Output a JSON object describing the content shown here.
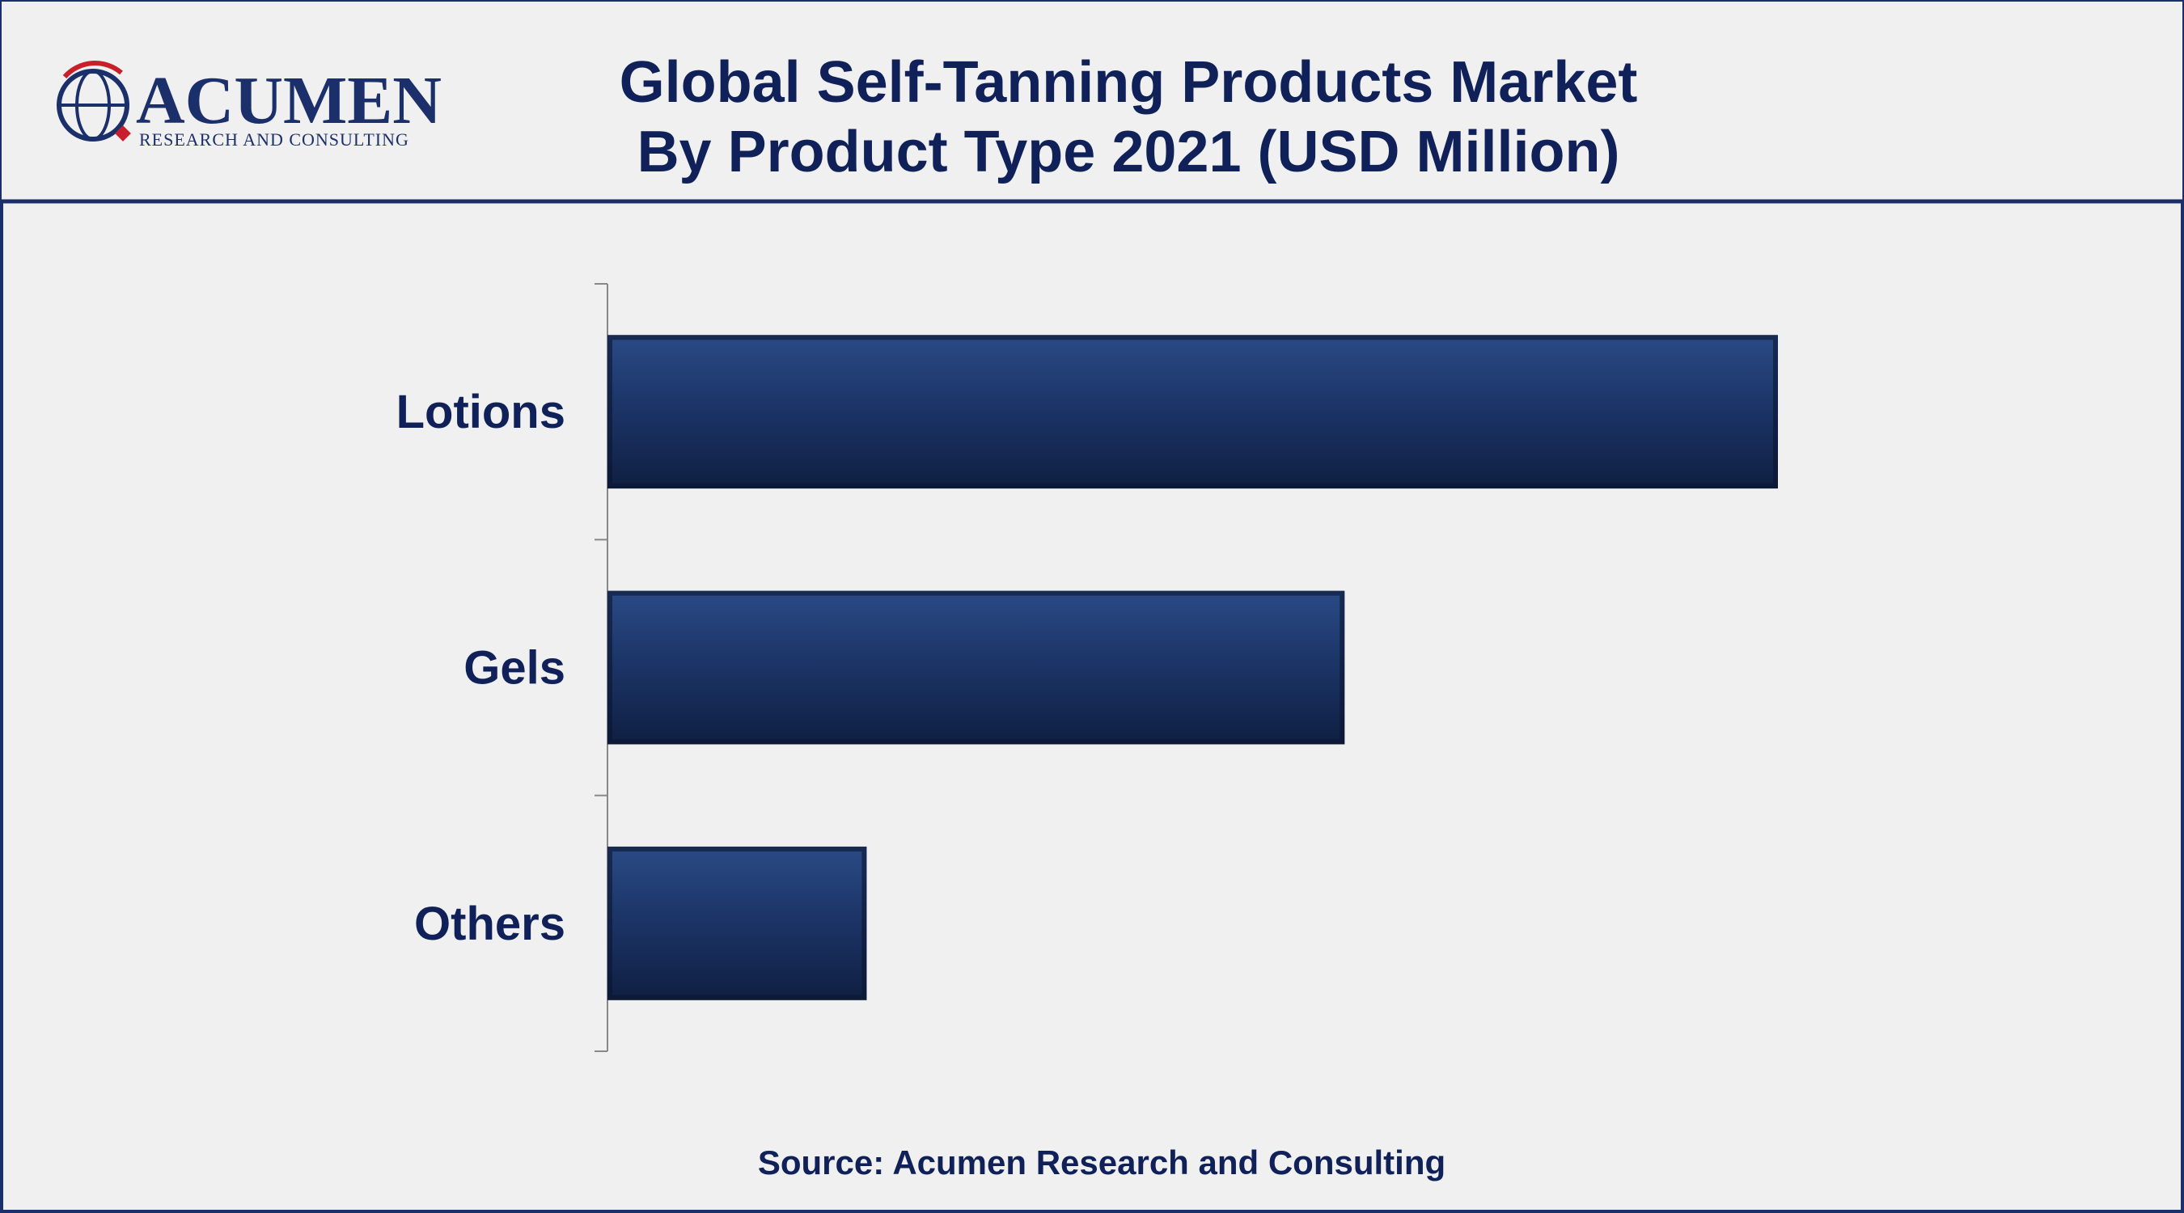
{
  "logo": {
    "name": "ACUMEN",
    "tagline": "RESEARCH AND CONSULTING"
  },
  "chart_data": {
    "type": "bar",
    "orientation": "horizontal",
    "title": "Global Self-Tanning Products Market",
    "subtitle": "By Product Type 2021 (USD Million)",
    "categories": [
      "Lotions",
      "Gels",
      "Others"
    ],
    "values": [
      840,
      529,
      186
    ],
    "color": "#1b3365",
    "source": "Source: Acumen Research and Consulting"
  }
}
